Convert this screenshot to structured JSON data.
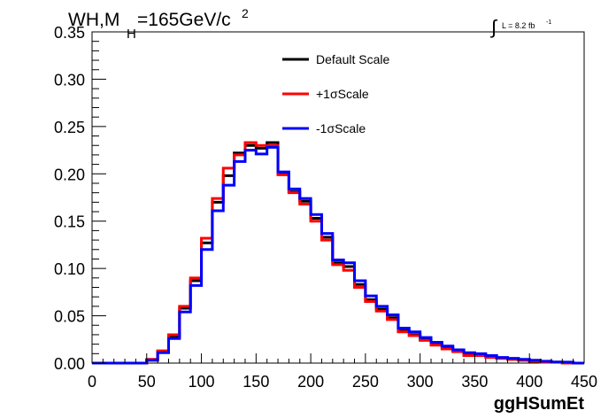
{
  "chart_data": {
    "type": "line",
    "title_main": "WH,M",
    "title_sub": "H",
    "title_rest": "=165GeV/c",
    "title_sup": "2",
    "lumi_label": "L = 8.2 fb",
    "lumi_sup": "-1",
    "xlabel": "ggHSumEt",
    "ylabel": "",
    "xlim": [
      0,
      450
    ],
    "ylim": [
      0,
      0.35
    ],
    "xticks": [
      "0",
      "50",
      "100",
      "150",
      "200",
      "250",
      "300",
      "350",
      "400",
      "450"
    ],
    "yticks": [
      "0.00",
      "0.05",
      "0.10",
      "0.15",
      "0.20",
      "0.25",
      "0.30",
      "0.35"
    ],
    "bin_edges": [
      0,
      10,
      20,
      30,
      40,
      50,
      60,
      70,
      80,
      90,
      100,
      110,
      120,
      130,
      140,
      150,
      160,
      170,
      180,
      190,
      200,
      210,
      220,
      230,
      240,
      250,
      260,
      270,
      280,
      290,
      300,
      310,
      320,
      330,
      340,
      350,
      360,
      370,
      380,
      390,
      400,
      410,
      420,
      430,
      440,
      450
    ],
    "series": [
      {
        "name": "Default Scale",
        "color": "#000000",
        "values": [
          0,
          0,
          0,
          0,
          0,
          0.003,
          0.012,
          0.028,
          0.058,
          0.087,
          0.127,
          0.17,
          0.198,
          0.222,
          0.23,
          0.227,
          0.233,
          0.2,
          0.181,
          0.171,
          0.153,
          0.133,
          0.106,
          0.102,
          0.083,
          0.067,
          0.057,
          0.048,
          0.034,
          0.03,
          0.025,
          0.02,
          0.016,
          0.013,
          0.009,
          0.009,
          0.007,
          0.005,
          0.004,
          0.003,
          0.002,
          0.001,
          0.001,
          0,
          0
        ]
      },
      {
        "name": "+1σScale",
        "color": "#ff0000",
        "values": [
          0,
          0,
          0,
          0,
          0,
          0.004,
          0.013,
          0.03,
          0.06,
          0.09,
          0.132,
          0.174,
          0.206,
          0.22,
          0.233,
          0.23,
          0.23,
          0.199,
          0.18,
          0.168,
          0.15,
          0.13,
          0.104,
          0.098,
          0.08,
          0.065,
          0.055,
          0.046,
          0.033,
          0.029,
          0.024,
          0.019,
          0.015,
          0.012,
          0.008,
          0.008,
          0.006,
          0.005,
          0.004,
          0.003,
          0.002,
          0.001,
          0.001,
          0,
          0
        ]
      },
      {
        "name": "-1σScale",
        "color": "#0000ff",
        "values": [
          0,
          0,
          0,
          0,
          0,
          0.003,
          0.011,
          0.026,
          0.054,
          0.082,
          0.12,
          0.161,
          0.188,
          0.213,
          0.225,
          0.221,
          0.228,
          0.202,
          0.184,
          0.174,
          0.157,
          0.137,
          0.109,
          0.106,
          0.087,
          0.071,
          0.06,
          0.051,
          0.037,
          0.033,
          0.027,
          0.022,
          0.018,
          0.014,
          0.011,
          0.01,
          0.008,
          0.006,
          0.005,
          0.004,
          0.003,
          0.002,
          0.001,
          0.001,
          0
        ]
      }
    ]
  }
}
